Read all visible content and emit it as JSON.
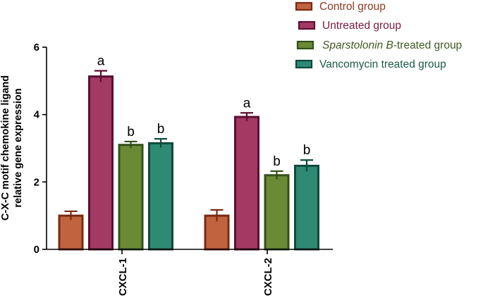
{
  "chart_data": {
    "type": "bar",
    "ylabel_lines": [
      "C-X-C motif chemokine ligand",
      "relative gene expression"
    ],
    "categories": [
      "CXCL-1",
      "CXCL-2"
    ],
    "ylim": [
      0,
      6
    ],
    "yticks": [
      "0",
      "2",
      "4",
      "6"
    ],
    "legend_position": "top-right",
    "series": [
      {
        "name": "Control group",
        "color": "#c0643f",
        "edge": "#7a2a12",
        "text_color": "#8b3a1e",
        "values": [
          1.0,
          1.0
        ],
        "errors": [
          0.13,
          0.17
        ],
        "labels": [
          "",
          ""
        ]
      },
      {
        "name": "Untreated group",
        "color": "#a33a63",
        "edge": "#5c0f33",
        "text_color": "#7a1b45",
        "values": [
          5.13,
          3.93
        ],
        "errors": [
          0.17,
          0.12
        ],
        "labels": [
          "a",
          "a"
        ]
      },
      {
        "name_italic": "Sparstolonin B",
        "name_rest": "-treated group",
        "color": "#6a8a35",
        "edge": "#34501a",
        "text_color": "#3f5a20",
        "values": [
          3.1,
          2.2
        ],
        "errors": [
          0.1,
          0.12
        ],
        "labels": [
          "b",
          "b"
        ]
      },
      {
        "name": "Vancomycin treated group",
        "color": "#2e8a72",
        "edge": "#0f4a3c",
        "text_color": "#1a5a4a",
        "values": [
          3.15,
          2.48
        ],
        "errors": [
          0.13,
          0.17
        ],
        "labels": [
          "b",
          "b"
        ]
      }
    ]
  }
}
